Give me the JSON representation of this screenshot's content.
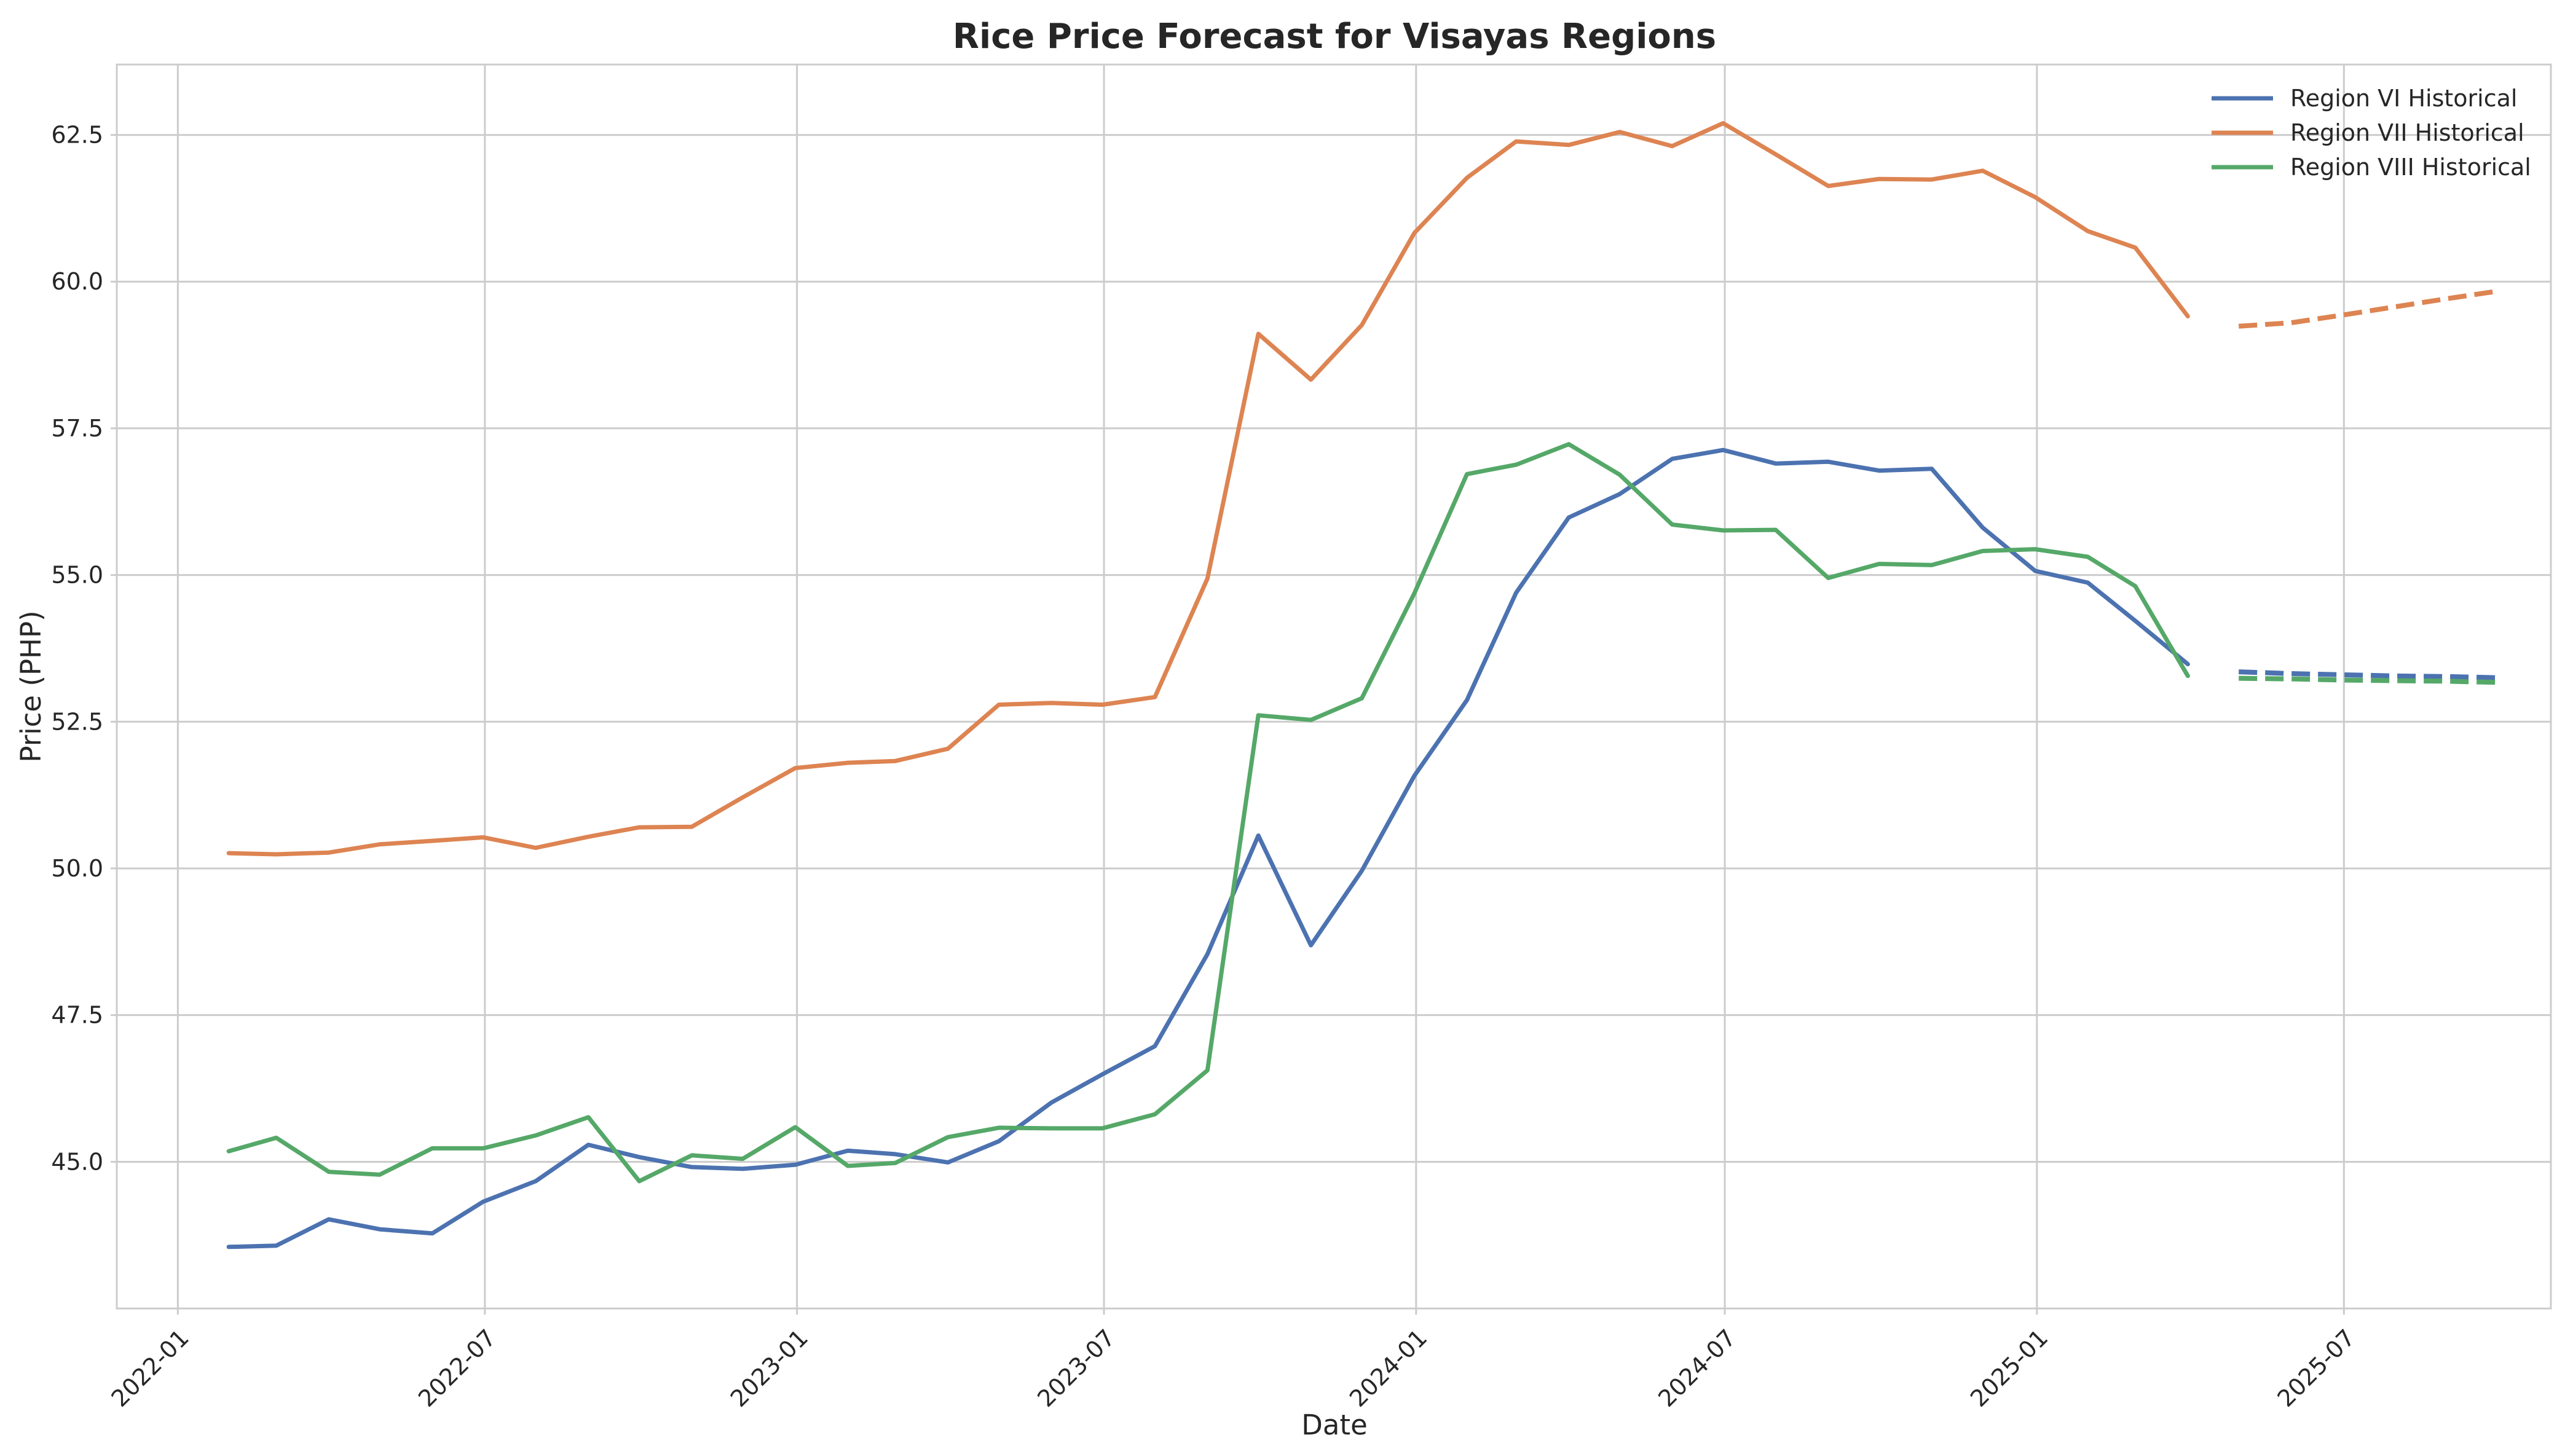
{
  "chart_data": {
    "type": "line",
    "title": "Rice Price Forecast for Visayas Regions",
    "xlabel": "Date",
    "ylabel": "Price (PHP)",
    "xlim": [
      "2021-11-26",
      "2025-10-31"
    ],
    "ylim": [
      42.5,
      63.7
    ],
    "x_ticks": [
      "2022-01",
      "2022-07",
      "2023-01",
      "2023-07",
      "2024-01",
      "2024-07",
      "2025-01",
      "2025-07"
    ],
    "y_ticks": [
      "45.0",
      "47.5",
      "50.0",
      "52.5",
      "55.0",
      "57.5",
      "60.0",
      "62.5"
    ],
    "grid": true,
    "legend_position": "top-right",
    "x": [
      "2022-01-31",
      "2022-02-28",
      "2022-03-31",
      "2022-04-30",
      "2022-05-31",
      "2022-06-30",
      "2022-07-31",
      "2022-08-31",
      "2022-09-30",
      "2022-10-31",
      "2022-11-30",
      "2022-12-31",
      "2023-01-31",
      "2023-02-28",
      "2023-03-31",
      "2023-04-30",
      "2023-05-31",
      "2023-06-30",
      "2023-07-31",
      "2023-08-31",
      "2023-09-30",
      "2023-10-31",
      "2023-11-30",
      "2023-12-31",
      "2024-01-31",
      "2024-02-29",
      "2024-03-31",
      "2024-04-30",
      "2024-05-31",
      "2024-06-30",
      "2024-07-31",
      "2024-08-31",
      "2024-09-30",
      "2024-10-31",
      "2024-11-30",
      "2024-12-31",
      "2025-01-31",
      "2025-02-28",
      "2025-03-31"
    ],
    "forecast_x": [
      "2025-04-30",
      "2025-05-31",
      "2025-06-30",
      "2025-07-31",
      "2025-08-31",
      "2025-09-30"
    ],
    "series": [
      {
        "name": "Region VI Historical",
        "color": "#4c72b0",
        "values": [
          43.55,
          43.57,
          44.02,
          43.85,
          43.78,
          44.32,
          44.67,
          45.29,
          45.08,
          44.91,
          44.88,
          44.95,
          45.19,
          45.13,
          44.99,
          45.35,
          46.01,
          46.49,
          46.97,
          48.54,
          50.56,
          48.69,
          49.96,
          51.58,
          52.87,
          54.7,
          55.98,
          56.38,
          56.98,
          57.13,
          56.9,
          56.93,
          56.78,
          56.81,
          55.81,
          55.07,
          54.87,
          54.22,
          53.48
        ],
        "forecast": [
          53.35,
          53.32,
          53.3,
          53.28,
          53.27,
          53.25
        ]
      },
      {
        "name": "Region VII Historical",
        "color": "#dd8452",
        "values": [
          50.26,
          50.24,
          50.27,
          50.41,
          50.47,
          50.53,
          50.35,
          50.54,
          50.7,
          50.71,
          51.21,
          51.71,
          51.8,
          51.83,
          52.04,
          52.79,
          52.82,
          52.79,
          52.92,
          54.94,
          59.11,
          58.33,
          59.26,
          60.83,
          61.77,
          62.39,
          62.33,
          62.55,
          62.31,
          62.7,
          62.17,
          61.63,
          61.75,
          61.74,
          61.89,
          61.44,
          60.86,
          60.58,
          59.41
        ],
        "forecast": [
          59.24,
          59.3,
          59.43,
          59.57,
          59.71,
          59.84
        ]
      },
      {
        "name": "Region VIII Historical",
        "color": "#55a868",
        "values": [
          45.18,
          45.41,
          44.83,
          44.78,
          45.23,
          45.23,
          45.45,
          45.76,
          44.67,
          45.11,
          45.05,
          45.59,
          44.93,
          44.98,
          45.42,
          45.58,
          45.57,
          45.57,
          45.81,
          46.56,
          52.61,
          52.53,
          52.9,
          54.69,
          56.72,
          56.88,
          57.23,
          56.71,
          55.86,
          55.76,
          55.77,
          54.95,
          55.19,
          55.17,
          55.41,
          55.44,
          55.31,
          54.81,
          53.28
        ],
        "forecast": [
          53.24,
          53.23,
          53.21,
          53.2,
          53.19,
          53.17
        ]
      }
    ]
  }
}
